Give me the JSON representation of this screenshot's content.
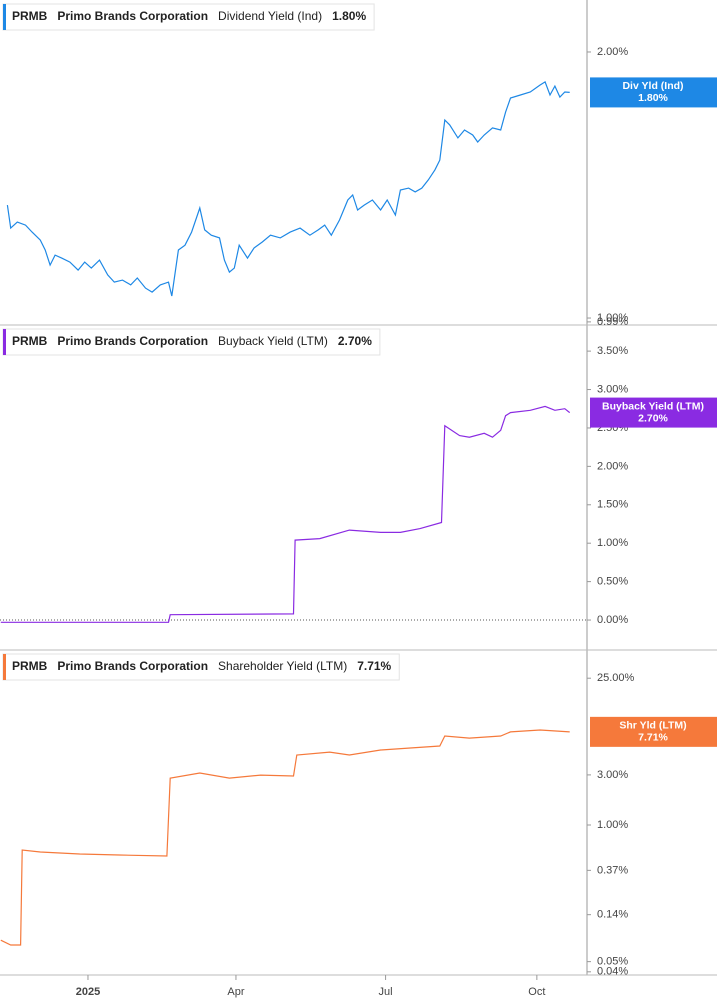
{
  "chart_data": [
    {
      "type": "line",
      "ticker": "PRMB",
      "company": "Primo Brands Corporation",
      "log_scale": true,
      "xlim": [
        -53.5,
        303.5
      ],
      "ylim": [
        0.982,
        2.29
      ],
      "yticks": [
        {
          "value": 2,
          "label": "2.00%"
        },
        {
          "value": 1,
          "label": "1.00%"
        },
        {
          "value": 0.99,
          "label": "0.99%"
        }
      ],
      "series": [
        {
          "name": "Dividend Yield (Ind)",
          "short_name": "Div Yld (Ind)",
          "color": "#1e88e5",
          "last": {
            "value": 1.8,
            "label": "1.80%"
          },
          "x": [
            -49,
            -47,
            -43,
            -38,
            -34,
            -29,
            -26,
            -23,
            -20,
            -16,
            -11,
            -6,
            -2,
            2,
            7,
            12,
            16,
            21,
            26,
            30,
            35,
            39,
            44,
            49,
            51,
            55,
            59,
            63,
            68,
            71,
            75,
            80,
            83,
            86,
            89,
            92,
            97,
            101,
            106,
            111,
            117,
            123,
            129,
            135,
            140,
            144,
            148,
            153,
            158,
            161,
            164,
            168,
            173,
            178,
            182,
            187,
            190,
            195,
            199,
            203,
            207,
            211,
            214,
            217,
            220,
            225,
            229,
            234,
            237,
            241,
            246,
            251,
            254,
            257,
            263,
            269,
            275,
            278,
            281,
            284,
            287,
            290,
            293
          ],
          "values": [
            1.342,
            1.264,
            1.284,
            1.274,
            1.251,
            1.225,
            1.194,
            1.148,
            1.178,
            1.169,
            1.157,
            1.133,
            1.157,
            1.139,
            1.163,
            1.119,
            1.098,
            1.104,
            1.09,
            1.11,
            1.081,
            1.07,
            1.09,
            1.098,
            1.059,
            1.194,
            1.209,
            1.251,
            1.332,
            1.258,
            1.241,
            1.232,
            1.163,
            1.127,
            1.139,
            1.209,
            1.169,
            1.2,
            1.219,
            1.241,
            1.232,
            1.251,
            1.264,
            1.241,
            1.258,
            1.274,
            1.241,
            1.291,
            1.36,
            1.378,
            1.325,
            1.342,
            1.36,
            1.325,
            1.36,
            1.308,
            1.396,
            1.403,
            1.389,
            1.403,
            1.433,
            1.471,
            1.509,
            1.675,
            1.654,
            1.599,
            1.632,
            1.611,
            1.582,
            1.611,
            1.641,
            1.632,
            1.71,
            1.774,
            1.788,
            1.802,
            1.835,
            1.85,
            1.788,
            1.83,
            1.778,
            1.802,
            1.8
          ]
        }
      ]
    },
    {
      "type": "line",
      "ticker": "PRMB",
      "company": "Primo Brands Corporation",
      "log_scale": false,
      "zero_line": true,
      "xlim": [
        -53.5,
        303.5
      ],
      "ylim": [
        -0.39,
        3.84
      ],
      "yticks": [
        {
          "value": 3.5,
          "label": "3.50%"
        },
        {
          "value": 3,
          "label": "3.00%"
        },
        {
          "value": 2.5,
          "label": "2.50%"
        },
        {
          "value": 2,
          "label": "2.00%"
        },
        {
          "value": 1.5,
          "label": "1.50%"
        },
        {
          "value": 1,
          "label": "1.00%"
        },
        {
          "value": 0.5,
          "label": "0.50%"
        },
        {
          "value": 0,
          "label": "0.00%"
        }
      ],
      "series": [
        {
          "name": "Buyback Yield (LTM)",
          "short_name": "Buyback Yield (LTM)",
          "color": "#8a2be2",
          "last": {
            "value": 2.7,
            "label": "2.70%"
          },
          "x": [
            -53,
            49,
            50,
            125,
            126,
            141,
            159,
            178,
            190,
            202,
            215,
            217,
            226,
            232,
            241,
            246,
            251,
            254,
            257,
            269,
            278,
            284,
            290,
            293
          ],
          "values": [
            -0.03,
            -0.03,
            0.07,
            0.08,
            1.04,
            1.06,
            1.17,
            1.14,
            1.14,
            1.19,
            1.27,
            2.53,
            2.4,
            2.38,
            2.43,
            2.38,
            2.47,
            2.66,
            2.7,
            2.73,
            2.78,
            2.73,
            2.75,
            2.7
          ]
        }
      ]
    },
    {
      "type": "line",
      "ticker": "PRMB",
      "company": "Primo Brands Corporation",
      "log_scale": true,
      "xlim": [
        -53.5,
        303.5
      ],
      "ylim": [
        0.0373,
        46.4
      ],
      "yticks": [
        {
          "value": 25,
          "label": "25.00%"
        },
        {
          "value": 3,
          "label": "3.00%"
        },
        {
          "value": 1,
          "label": "1.00%"
        },
        {
          "value": 0.37,
          "label": "0.37%"
        },
        {
          "value": 0.14,
          "label": "0.14%"
        },
        {
          "value": 0.05,
          "label": "0.05%"
        },
        {
          "value": 0.04,
          "label": "0.04%"
        }
      ],
      "xticks": [
        {
          "value": 0,
          "label": "2025"
        },
        {
          "value": 90,
          "label": "Apr"
        },
        {
          "value": 181,
          "label": "Jul"
        },
        {
          "value": 273,
          "label": "Oct"
        }
      ],
      "series": [
        {
          "name": "Shareholder Yield (LTM)",
          "short_name": "Shr Yld (LTM)",
          "color": "#f5793b",
          "last": {
            "value": 7.71,
            "label": "7.71%"
          },
          "x": [
            -53,
            -47,
            -41,
            -40,
            -29,
            -5,
            19,
            48,
            50,
            68,
            86,
            105,
            125,
            127,
            147,
            159,
            178,
            196,
            214,
            217,
            232,
            251,
            257,
            275,
            293
          ],
          "values": [
            0.08,
            0.072,
            0.072,
            0.578,
            0.553,
            0.53,
            0.518,
            0.507,
            2.8,
            3.13,
            2.8,
            2.99,
            2.93,
            4.64,
            4.95,
            4.64,
            5.18,
            5.41,
            5.65,
            7.04,
            6.73,
            7.04,
            7.71,
            8.03,
            7.71
          ]
        }
      ]
    }
  ]
}
